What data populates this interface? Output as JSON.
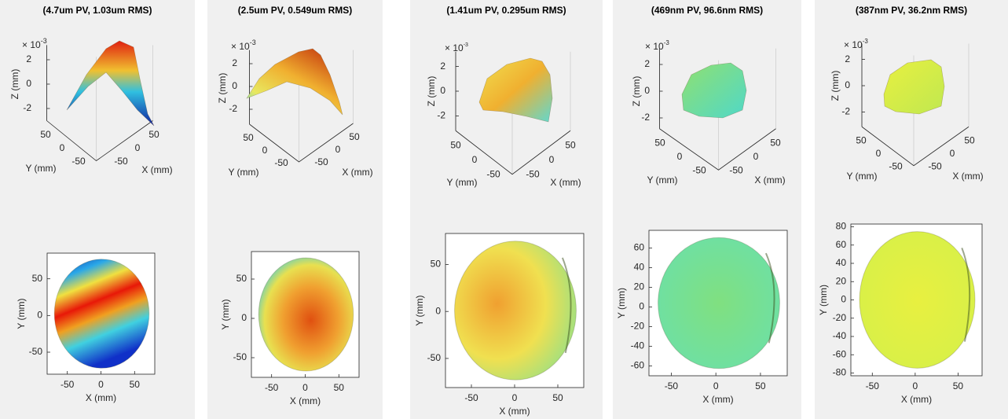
{
  "panels": [
    {
      "title": "(4.7um PV, 1.03um RMS)",
      "surface": {
        "exponent_base": "× 10",
        "exponent_power": "-3",
        "zticks": [
          2,
          0,
          -2
        ],
        "zlabel": "Z (mm)",
        "yticks": [
          50,
          0,
          -50
        ],
        "ylabel": "Y (mm)",
        "xticks": [
          -50,
          0,
          50
        ],
        "xlabel": "X (mm)"
      },
      "map": {
        "xticks": [
          -50,
          0,
          50
        ],
        "yticks": [
          50,
          0,
          -50
        ],
        "xlim": [
          -80,
          80
        ],
        "ylim": [
          -80,
          85
        ],
        "xlabel": "X (mm)",
        "ylabel": "Y (mm)"
      }
    },
    {
      "title": "(2.5um PV, 0.549um RMS)",
      "surface": {
        "exponent_base": "× 10",
        "exponent_power": "-3",
        "zticks": [
          2,
          0,
          -2
        ],
        "zlabel": "Z (mm)",
        "yticks": [
          50,
          0,
          -50
        ],
        "ylabel": "Y (mm)",
        "xticks": [
          -50,
          0,
          50
        ],
        "xlabel": "X (mm)"
      },
      "map": {
        "xticks": [
          -50,
          0,
          50
        ],
        "yticks": [
          50,
          0,
          -50
        ],
        "xlim": [
          -80,
          80
        ],
        "ylim": [
          -75,
          85
        ],
        "xlabel": "X (mm)",
        "ylabel": "Y (mm)"
      }
    },
    {
      "title": "(1.41um PV, 0.295um RMS)",
      "surface": {
        "exponent_base": "× 10",
        "exponent_power": "-3",
        "zticks": [
          2,
          0,
          -2
        ],
        "zlabel": "Z (mm)",
        "yticks": [
          50,
          0,
          -50
        ],
        "ylabel": "Y (mm)",
        "xticks": [
          -50,
          0,
          50
        ],
        "xlabel": "X (mm)"
      },
      "map": {
        "xticks": [
          -50,
          0,
          50
        ],
        "yticks": [
          50,
          0,
          -50
        ],
        "xlim": [
          -80,
          80
        ],
        "ylim": [
          -81,
          83
        ],
        "xlabel": "X (mm)",
        "ylabel": "Y (mm)"
      }
    },
    {
      "title": "(469nm PV, 96.6nm RMS)",
      "surface": {
        "exponent_base": "× 10",
        "exponent_power": "-3",
        "zticks": [
          2,
          0,
          -2
        ],
        "zlabel": "Z (mm)",
        "yticks": [
          50,
          0,
          -50
        ],
        "ylabel": "Y (mm)",
        "xticks": [
          -50,
          0,
          50
        ],
        "xlabel": "X (mm)"
      },
      "map": {
        "xticks": [
          -50,
          0,
          50
        ],
        "yticks": [
          60,
          40,
          20,
          0,
          -20,
          -40,
          -60
        ],
        "xlim": [
          -75,
          80
        ],
        "ylim": [
          -70,
          78
        ],
        "xlabel": "X (mm)",
        "ylabel": "Y (mm)"
      }
    },
    {
      "title": "(387nm PV, 36.2nm RMS)",
      "surface": {
        "exponent_base": "× 10",
        "exponent_power": "-3",
        "zticks": [
          2,
          0,
          -2
        ],
        "zlabel": "Z (mm)",
        "yticks": [
          50,
          0,
          -50
        ],
        "ylabel": "Y (mm)",
        "xticks": [
          -50,
          0,
          50
        ],
        "xlabel": "X (mm)"
      },
      "map": {
        "xticks": [
          -50,
          0,
          50
        ],
        "yticks": [
          80,
          60,
          40,
          20,
          0,
          -20,
          -40,
          -60,
          -80
        ],
        "xlim": [
          -75,
          78
        ],
        "ylim": [
          -83,
          83
        ],
        "xlabel": "X (mm)",
        "ylabel": "Y (mm)"
      }
    }
  ]
}
